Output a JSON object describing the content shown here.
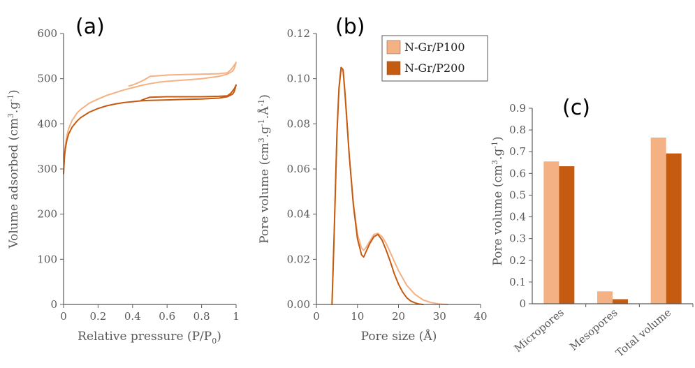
{
  "colors": {
    "p100": "#F4B183",
    "p200": "#C55A11",
    "axis": "#595959"
  },
  "legend": {
    "p100": "N-Gr/P100",
    "p200": "N-Gr/P200"
  },
  "chart_data": [
    {
      "type": "line",
      "panel_label": "(a)",
      "xlabel": "Relative pressure (P/P",
      "xlabel_sub": "0",
      "xlabel_end": ")",
      "ylabel": "Volume adsorbed (cm",
      "ylabel_sup1": "3",
      "ylabel_mid": ".g",
      "ylabel_sup2": "-1",
      "ylabel_end": ")",
      "xlim": [
        0,
        1
      ],
      "ylim": [
        0,
        600
      ],
      "xticks": [
        0,
        0.2,
        0.4,
        0.6,
        0.8,
        1
      ],
      "xtick_labels": [
        "0",
        "0.2",
        "0.4",
        "0.6",
        "0.8",
        "1"
      ],
      "yticks": [
        0,
        100,
        200,
        300,
        400,
        500,
        600
      ],
      "ytick_labels": [
        "0",
        "100",
        "200",
        "300",
        "400",
        "500",
        "600"
      ],
      "series": [
        {
          "name": "N-Gr/P100",
          "x": [
            0,
            0.005,
            0.01,
            0.02,
            0.03,
            0.05,
            0.08,
            0.1,
            0.15,
            0.2,
            0.25,
            0.3,
            0.35,
            0.4,
            0.45,
            0.5,
            0.55,
            0.6,
            0.7,
            0.8,
            0.9,
            0.95,
            0.98,
            0.99,
            1.0,
            0.99,
            0.97,
            0.95,
            0.9,
            0.8,
            0.7,
            0.6,
            0.5,
            0.48,
            0.45,
            0.42,
            0.4,
            0.38
          ],
          "y": [
            290,
            330,
            352,
            375,
            390,
            408,
            425,
            432,
            446,
            455,
            463,
            469,
            475,
            480,
            485,
            489,
            492,
            494,
            497,
            500,
            505,
            510,
            517,
            523,
            536,
            530,
            520,
            513,
            511,
            510,
            509,
            508,
            505,
            500,
            494,
            489,
            486,
            484
          ]
        },
        {
          "name": "N-Gr/P200",
          "x": [
            0,
            0.005,
            0.01,
            0.02,
            0.03,
            0.05,
            0.08,
            0.1,
            0.15,
            0.2,
            0.25,
            0.3,
            0.35,
            0.4,
            0.45,
            0.5,
            0.6,
            0.7,
            0.8,
            0.9,
            0.95,
            0.98,
            0.99,
            1.0,
            0.99,
            0.97,
            0.95,
            0.9,
            0.8,
            0.7,
            0.6,
            0.5,
            0.47,
            0.45
          ],
          "y": [
            290,
            325,
            345,
            365,
            378,
            393,
            407,
            414,
            426,
            434,
            440,
            444,
            447,
            449,
            451,
            452,
            453,
            454,
            455,
            457,
            460,
            466,
            472,
            486,
            478,
            468,
            462,
            461,
            460,
            460,
            460,
            459,
            455,
            452
          ]
        }
      ]
    },
    {
      "type": "line",
      "panel_label": "(b)",
      "xlabel": "Pore size (Å)",
      "ylabel": "Pore volume (cm",
      "ylabel_sup1": "3",
      "ylabel_mid": ".g",
      "ylabel_sup2": "-1",
      "ylabel_mid2": ".Å",
      "ylabel_sup3": "-1",
      "ylabel_end": ")",
      "xlim": [
        0,
        40
      ],
      "ylim": [
        0,
        0.12
      ],
      "xticks": [
        0,
        10,
        20,
        30,
        40
      ],
      "xtick_labels": [
        "0",
        "10",
        "20",
        "30",
        "40"
      ],
      "yticks": [
        0,
        0.02,
        0.04,
        0.06,
        0.08,
        0.1,
        0.12
      ],
      "ytick_labels": [
        "0.00",
        "0.02",
        "0.04",
        "0.06",
        "0.08",
        "0.10",
        "0.12"
      ],
      "legend_position": "top-right",
      "series": [
        {
          "name": "N-Gr/P100",
          "x": [
            3.8,
            4.3,
            5.0,
            5.5,
            6.0,
            6.5,
            7.0,
            8.0,
            9.0,
            10.0,
            11.0,
            11.5,
            12.0,
            13.0,
            14.0,
            15.0,
            16.0,
            17.0,
            18.0,
            19.0,
            20.0,
            22.0,
            24.0,
            26.0,
            28.0,
            30.0,
            32.0
          ],
          "y": [
            0.0,
            0.03,
            0.075,
            0.095,
            0.104,
            0.103,
            0.092,
            0.066,
            0.045,
            0.031,
            0.025,
            0.024,
            0.025,
            0.028,
            0.031,
            0.0315,
            0.03,
            0.027,
            0.023,
            0.019,
            0.015,
            0.0085,
            0.0045,
            0.002,
            0.0008,
            0.0002,
            0.0
          ]
        },
        {
          "name": "N-Gr/P200",
          "x": [
            3.8,
            4.3,
            5.0,
            5.5,
            6.0,
            6.5,
            7.0,
            8.0,
            9.0,
            10.0,
            11.0,
            11.5,
            12.0,
            13.0,
            14.0,
            15.0,
            16.0,
            17.0,
            18.0,
            19.0,
            20.0,
            21.0,
            22.0,
            23.0,
            24.0,
            25.0,
            26.0
          ],
          "y": [
            0.0,
            0.03,
            0.076,
            0.096,
            0.105,
            0.104,
            0.093,
            0.066,
            0.044,
            0.029,
            0.022,
            0.021,
            0.023,
            0.027,
            0.03,
            0.031,
            0.0285,
            0.024,
            0.019,
            0.0135,
            0.009,
            0.0055,
            0.003,
            0.0015,
            0.0007,
            0.0002,
            0.0
          ]
        }
      ]
    },
    {
      "type": "bar",
      "panel_label": "(c)",
      "ylabel": "Pore volume (cm",
      "ylabel_sup1": "3",
      "ylabel_mid": ".g",
      "ylabel_sup2": "-1",
      "ylabel_end": ")",
      "categories": [
        "Micropores",
        "Mesopores",
        "Total volume"
      ],
      "ylim": [
        0,
        0.9
      ],
      "yticks": [
        0,
        0.1,
        0.2,
        0.3,
        0.4,
        0.5,
        0.6,
        0.7,
        0.8,
        0.9
      ],
      "ytick_labels": [
        "0",
        "0.1",
        "0.2",
        "0.3",
        "0.4",
        "0.5",
        "0.6",
        "0.7",
        "0.8",
        "0.9"
      ],
      "series": [
        {
          "name": "N-Gr/P100",
          "values": [
            0.655,
            0.057,
            0.765
          ]
        },
        {
          "name": "N-Gr/P200",
          "values": [
            0.633,
            0.021,
            0.692
          ]
        }
      ]
    }
  ]
}
